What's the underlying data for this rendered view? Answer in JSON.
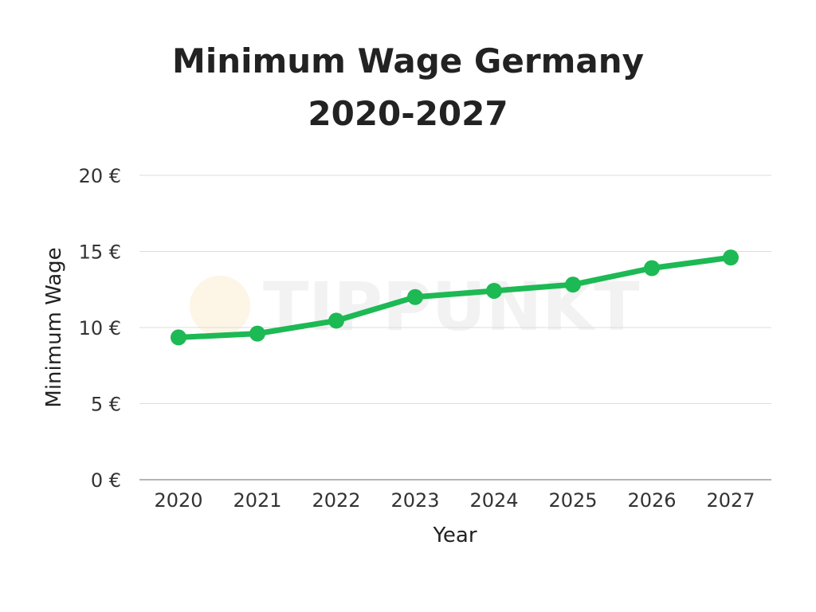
{
  "chart_data": {
    "type": "line",
    "title_lines": [
      "Minimum Wage Germany",
      "2020-2027"
    ],
    "xlabel": "Year",
    "ylabel": "Minimum Wage",
    "categories": [
      "2020",
      "2021",
      "2022",
      "2023",
      "2024",
      "2025",
      "2026",
      "2027"
    ],
    "series": [
      {
        "values": [
          9.35,
          9.6,
          10.45,
          12.0,
          12.41,
          12.82,
          13.9,
          14.6
        ],
        "color": "#1db954"
      }
    ],
    "y_ticks": [
      0,
      5,
      10,
      15,
      20
    ],
    "y_tick_labels": [
      "0 €",
      "5 €",
      "10 €",
      "15 €",
      "20 €"
    ],
    "ylim": [
      0,
      20
    ],
    "grid": true,
    "legend": "none",
    "watermark": "TIPPUNKT"
  }
}
